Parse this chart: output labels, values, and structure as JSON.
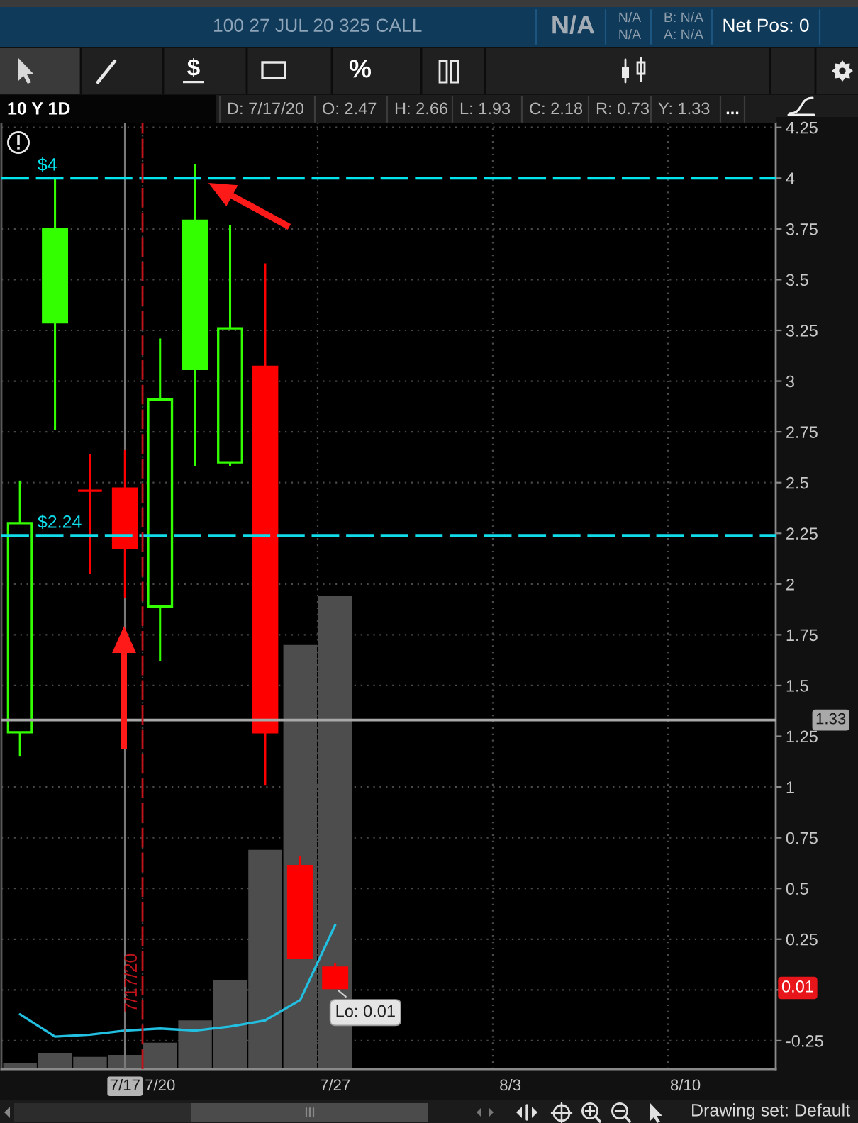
{
  "chart_data": {
    "type": "candlestick",
    "title": "10 Y 1D",
    "categories": [
      null,
      null,
      null,
      "7/17",
      "7/20",
      null,
      null,
      null,
      null,
      "7/27",
      null,
      null,
      null,
      null,
      "8/3",
      null,
      null,
      null,
      null,
      "8/10",
      null,
      null
    ],
    "ohlc": [
      [
        1.27,
        2.51,
        1.15,
        2.3
      ],
      [
        3.75,
        4.0,
        2.76,
        3.29
      ],
      [
        2.46,
        2.64,
        2.05,
        2.46
      ],
      [
        2.47,
        2.66,
        1.93,
        2.18
      ],
      [
        1.89,
        3.21,
        1.62,
        2.91
      ],
      [
        3.79,
        4.07,
        2.58,
        3.06
      ],
      [
        2.6,
        3.77,
        2.58,
        3.26
      ],
      [
        3.07,
        3.58,
        1.01,
        1.27
      ],
      [
        0.61,
        0.66,
        0.16,
        0.16
      ],
      [
        0.11,
        0.13,
        0.01,
        0.01
      ],
      null,
      null,
      null,
      null,
      null,
      null,
      null,
      null,
      null,
      null,
      null,
      null
    ],
    "colors": [
      "#33ff00",
      "#33ff00",
      "#ff0000",
      "#ff0000",
      "#33ff00",
      "#33ff00",
      "#33ff00",
      "#ff0000",
      "#ff0000",
      "#ff0000",
      null,
      null,
      null,
      null,
      null,
      null,
      null,
      null,
      null,
      null,
      null,
      null
    ],
    "series": [
      {
        "type": "bar",
        "color": "#4d4d4d",
        "values": [
          0.03,
          0.08,
          0.06,
          0.07,
          0.13,
          0.24,
          0.44,
          1.08,
          2.09,
          2.33,
          null,
          null,
          null,
          null,
          null,
          null,
          null,
          null,
          null,
          null,
          null,
          null
        ],
        "base": [
          -0.39,
          -0.39,
          -0.39,
          -0.39,
          -0.39,
          -0.39,
          -0.39,
          -0.39,
          -0.39,
          -0.39,
          null,
          null,
          null,
          null,
          null,
          null,
          null,
          null,
          null,
          null,
          null,
          null
        ]
      },
      {
        "type": "line",
        "color": "#22bfe0",
        "values": [
          -0.12,
          -0.23,
          -0.22,
          -0.2,
          -0.19,
          -0.2,
          -0.18,
          -0.15,
          -0.05,
          0.32,
          null,
          null,
          null,
          null,
          null,
          null,
          null,
          null,
          null,
          null,
          null,
          null
        ]
      }
    ],
    "ylim": [
      -0.39,
      4.27
    ],
    "yticks": [
      -0.25,
      {
        "value": 0,
        "label": null
      },
      0.25,
      0.5,
      0.75,
      1,
      1.25,
      1.5,
      1.75,
      2,
      2.25,
      2.5,
      2.75,
      3,
      3.25,
      3.5,
      3.75,
      4,
      4.25
    ],
    "grid": true,
    "ref_lines": [
      {
        "axis": "y",
        "value": 4,
        "label": "$4",
        "color": "#00e5ee",
        "line_style": "dashed"
      },
      {
        "axis": "y",
        "value": 2.24,
        "label": "$2.24",
        "color": "#10dcea",
        "line_style": "dashed"
      },
      {
        "axis": "y",
        "value": 1.33,
        "label": "1.33",
        "color": "#a8a8a8",
        "line_style": "solid"
      },
      {
        "axis": "x",
        "value": "7/17",
        "color": "#7a7a7a",
        "line_style": "solid"
      },
      {
        "axis": "x",
        "value": "7/17",
        "label": "7/17/20",
        "color": "#c0141a",
        "line_style": "dashed"
      }
    ],
    "annotations": [
      "100 27 JUL 20 325 CALL",
      "N/A",
      "N/A",
      "N/A",
      "B: N/A",
      "A: N/A",
      "Net Pos: 0",
      "D: 7/17/20",
      "O: 2.47",
      "H: 2.66",
      "L: 1.93",
      "C: 2.18",
      "R: 0.73",
      "Y: 1.33",
      "...",
      "$",
      "%",
      "Drawing set: Default",
      {
        "text": "Lo: 0.01",
        "x": "7/27",
        "y": 0.01
      },
      {
        "text": "0.01",
        "y": 0.01
      }
    ]
  }
}
